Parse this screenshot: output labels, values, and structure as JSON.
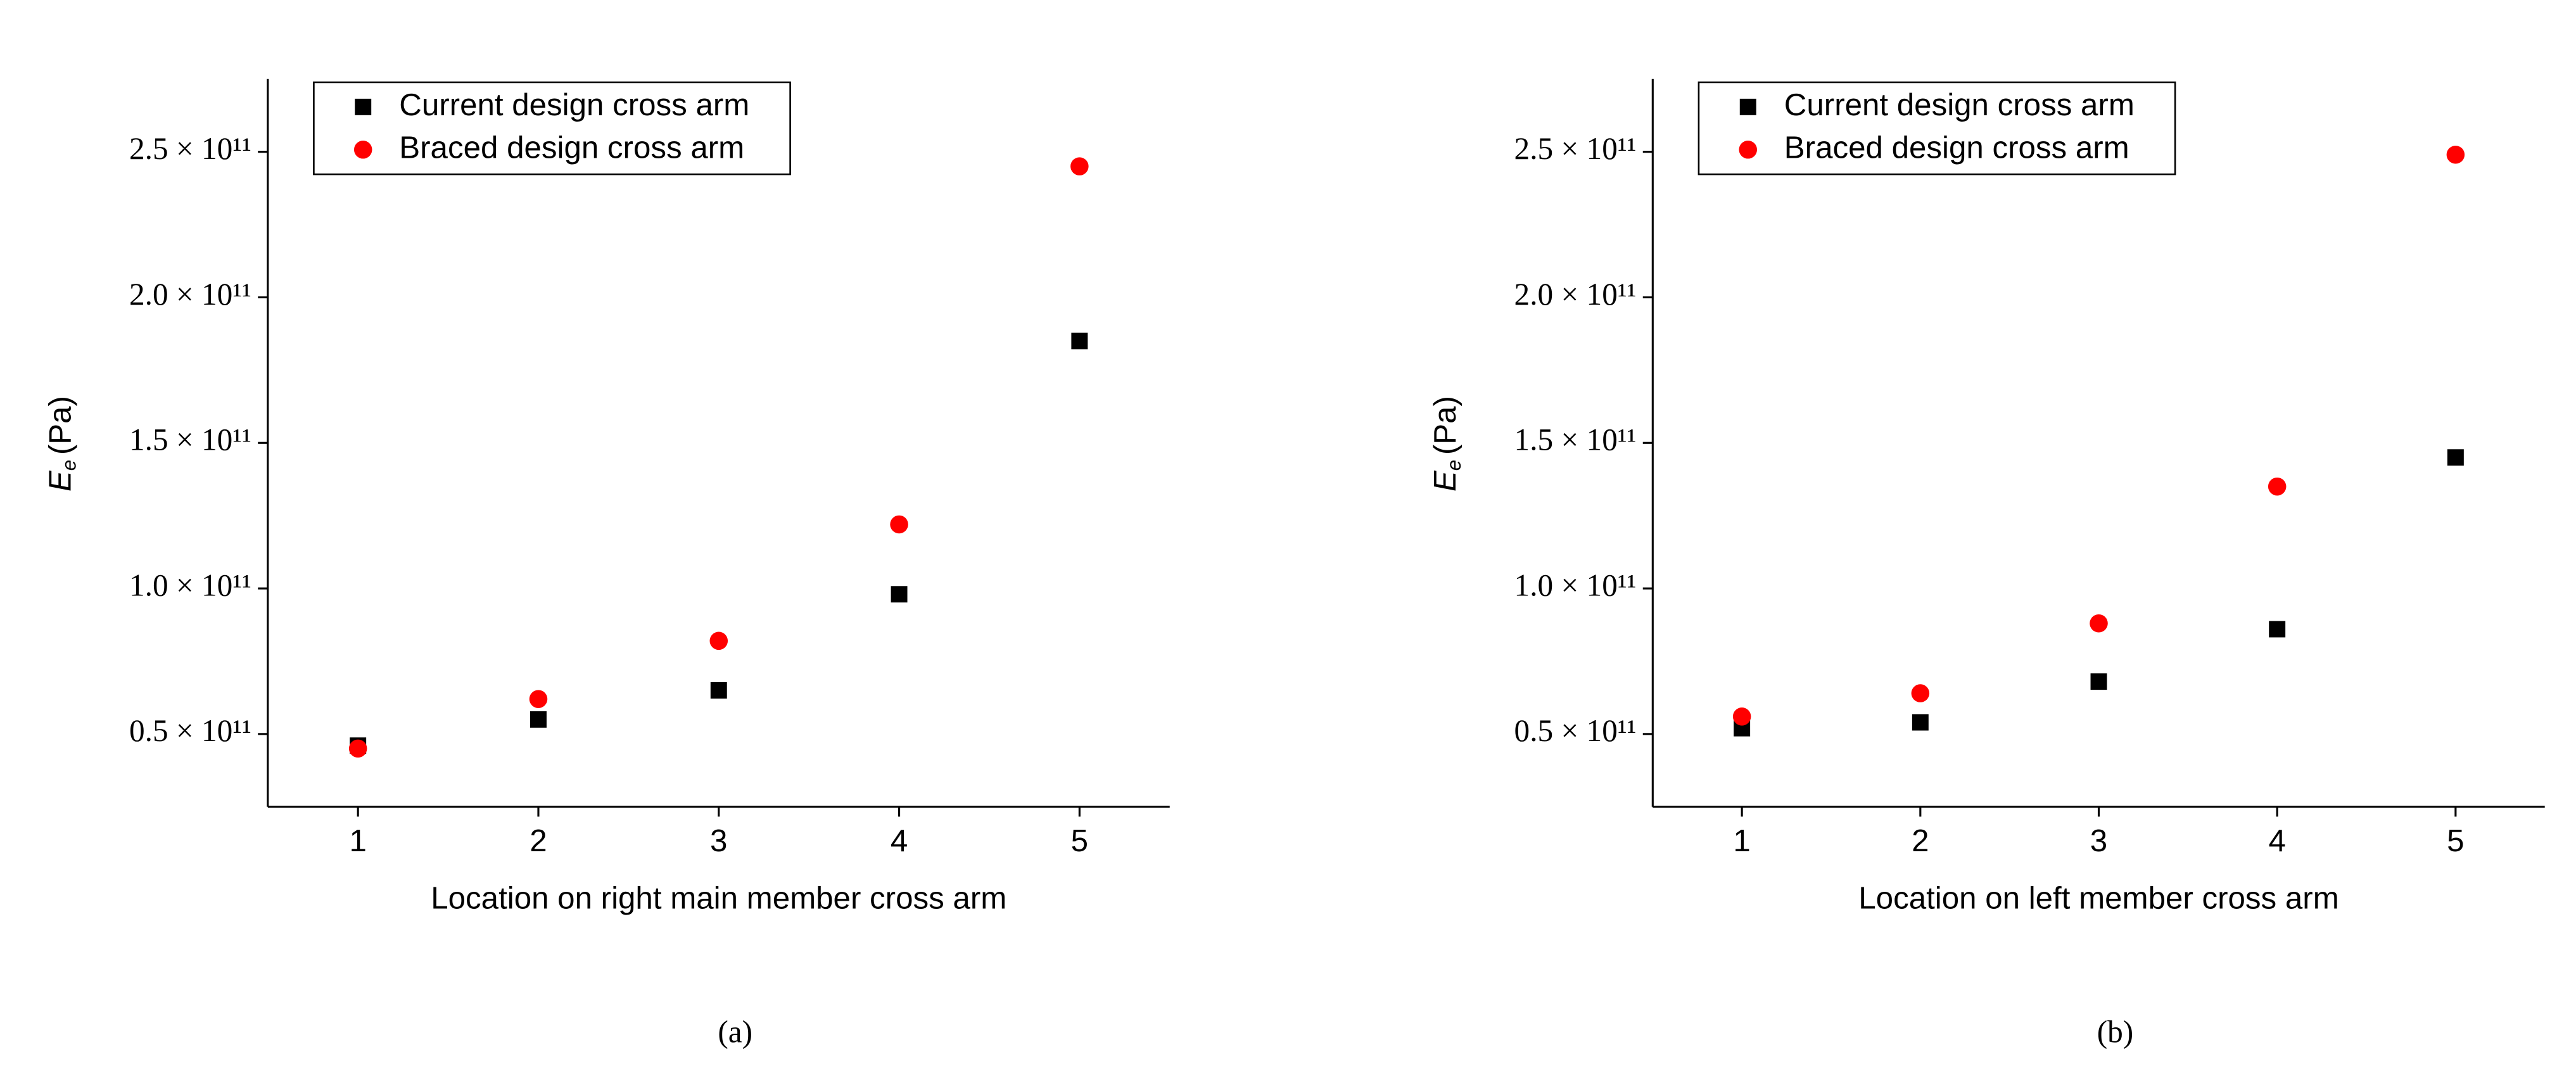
{
  "charts": [
    {
      "chart_data": {
        "type": "scatter",
        "panel_label": "(a)",
        "x_label": "Location on right main member cross arm",
        "y_label": {
          "symbol": "E",
          "subscript": "e",
          "unit": "(Pa)"
        },
        "x": [
          1,
          2,
          3,
          4,
          5
        ],
        "series": [
          {
            "name": "Current design cross arm",
            "color": "#000000",
            "marker": "square",
            "values": [
              46000000000,
              55000000000,
              65000000000,
              98000000000,
              185000000000
            ]
          },
          {
            "name": "Braced design cross arm",
            "color": "#ff0000",
            "marker": "circle",
            "values": [
              45000000000,
              62000000000,
              82000000000,
              122000000000,
              245000000000
            ]
          }
        ],
        "xlim": [
          0.5,
          5.5
        ],
        "xticks": [
          1,
          2,
          3,
          4,
          5
        ],
        "ylim": [
          25000000000,
          275000000000
        ],
        "yticks": [
          {
            "value": 50000000000,
            "label": "0.5 × 10¹¹"
          },
          {
            "value": 100000000000,
            "label": "1.0 × 10¹¹"
          },
          {
            "value": 150000000000,
            "label": "1.5 × 10¹¹"
          },
          {
            "value": 200000000000,
            "label": "2.0 × 10¹¹"
          },
          {
            "value": 250000000000,
            "label": "2.5 × 10¹¹"
          }
        ],
        "legend": "upper left",
        "grid": false
      }
    },
    {
      "chart_data": {
        "type": "scatter",
        "panel_label": "(b)",
        "x_label": "Location on left member cross arm",
        "y_label": {
          "symbol": "E",
          "subscript": "e",
          "unit": "(Pa)"
        },
        "x": [
          1,
          2,
          3,
          4,
          5
        ],
        "series": [
          {
            "name": "Current design cross arm",
            "color": "#000000",
            "marker": "square",
            "values": [
              52000000000,
              54000000000,
              68000000000,
              86000000000,
              145000000000
            ]
          },
          {
            "name": "Braced design cross arm",
            "color": "#ff0000",
            "marker": "circle",
            "values": [
              56000000000,
              64000000000,
              88000000000,
              135000000000,
              249000000000
            ]
          }
        ],
        "xlim": [
          0.5,
          5.5
        ],
        "xticks": [
          1,
          2,
          3,
          4,
          5
        ],
        "ylim": [
          25000000000,
          275000000000
        ],
        "yticks": [
          {
            "value": 50000000000,
            "label": "0.5 × 10¹¹"
          },
          {
            "value": 100000000000,
            "label": "1.0 × 10¹¹"
          },
          {
            "value": 150000000000,
            "label": "1.5 × 10¹¹"
          },
          {
            "value": 200000000000,
            "label": "2.0 × 10¹¹"
          },
          {
            "value": 250000000000,
            "label": "2.5 × 10¹¹"
          }
        ],
        "legend": "upper left",
        "grid": false
      }
    }
  ]
}
